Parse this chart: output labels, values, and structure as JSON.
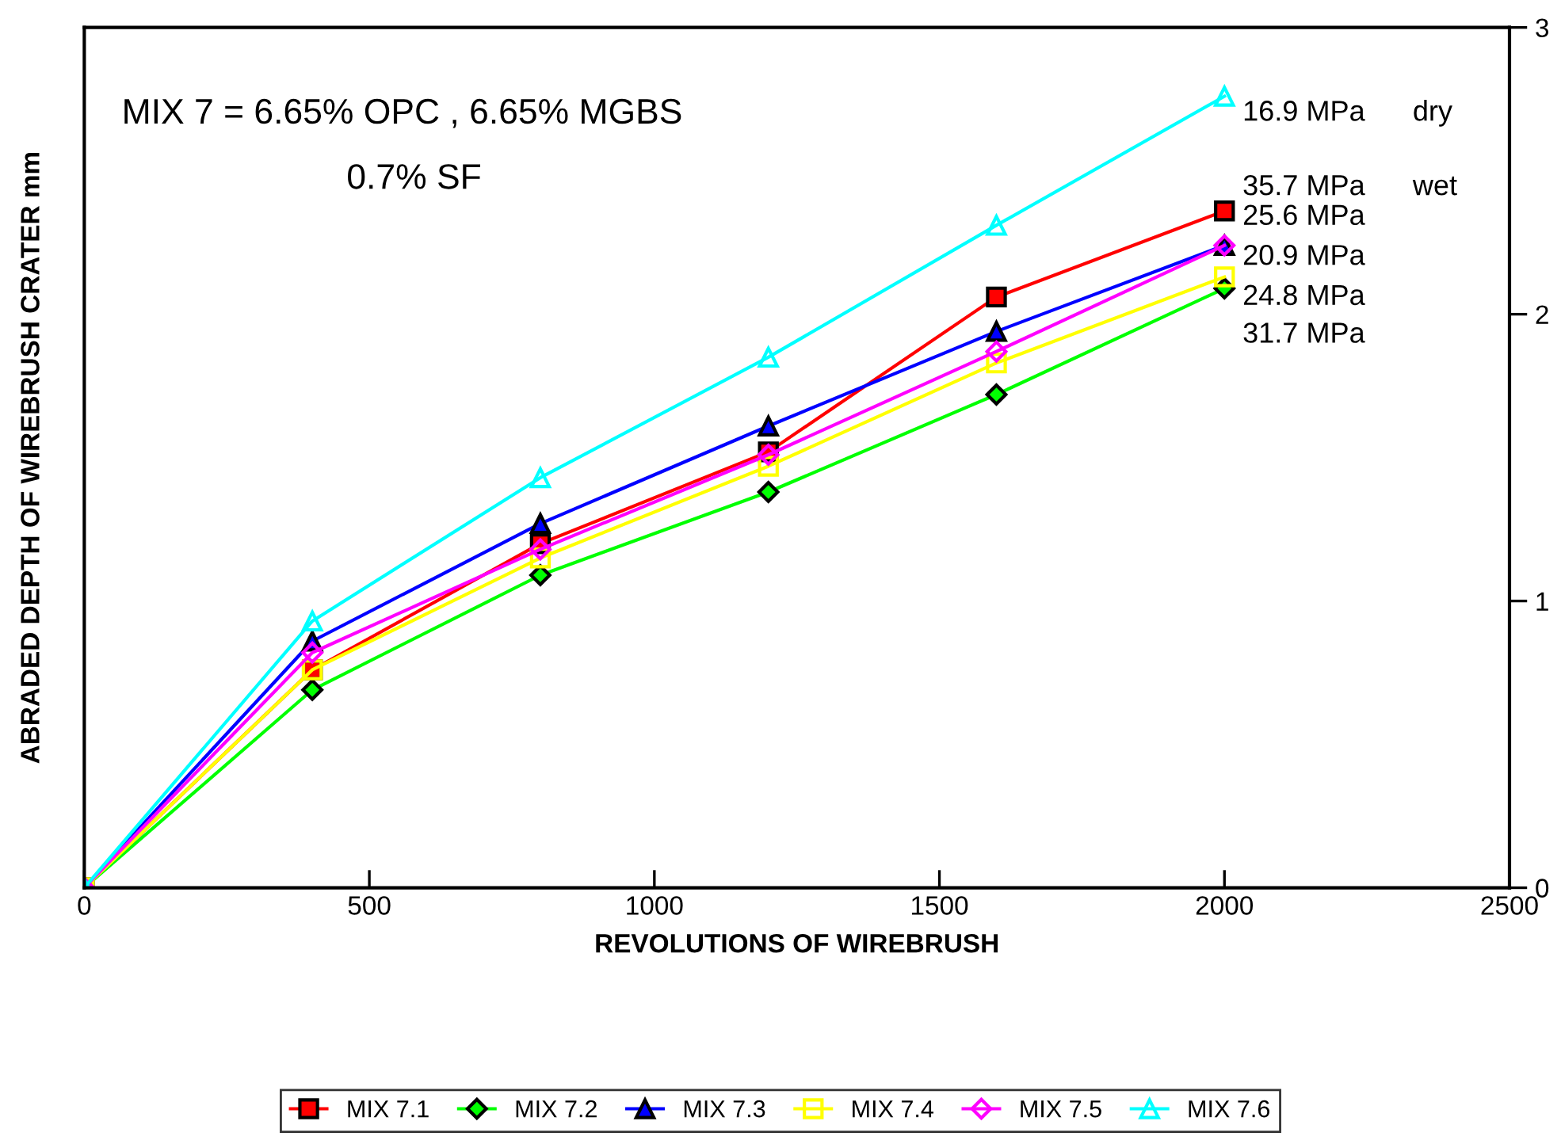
{
  "chart_data": {
    "type": "line",
    "xlabel": "REVOLUTIONS OF WIREBRUSH",
    "ylabel": "ABRADED DEPTH OF WIREBRUSH CRATER mm",
    "x": [
      0,
      400,
      800,
      1200,
      1600,
      2000
    ],
    "series": [
      {
        "name": "MIX 7.1",
        "color": "#ff0000",
        "marker": "square",
        "values": [
          0,
          0.76,
          1.2,
          1.52,
          2.06,
          2.36
        ]
      },
      {
        "name": "MIX 7.2",
        "color": "#00ff00",
        "marker": "diamond",
        "values": [
          0,
          0.69,
          1.09,
          1.38,
          1.72,
          2.09
        ]
      },
      {
        "name": "MIX 7.3",
        "color": "#0000ff",
        "marker": "triangle",
        "values": [
          0,
          0.86,
          1.27,
          1.61,
          1.94,
          2.24
        ]
      },
      {
        "name": "MIX 7.4",
        "color": "#ffff00",
        "marker": "square",
        "values": [
          0,
          0.76,
          1.15,
          1.47,
          1.83,
          2.13
        ]
      },
      {
        "name": "MIX 7.5",
        "color": "#ff00ff",
        "marker": "diamond",
        "values": [
          0,
          0.82,
          1.18,
          1.51,
          1.87,
          2.24
        ]
      },
      {
        "name": "MIX 7.6",
        "color": "#00ffff",
        "marker": "triangle",
        "values": [
          0,
          0.93,
          1.43,
          1.85,
          2.31,
          2.76
        ]
      }
    ],
    "xlim": [
      0,
      2500
    ],
    "xticks": [
      0,
      500,
      1000,
      1500,
      2000,
      2500
    ],
    "ylim": [
      0,
      3
    ],
    "yticks": [
      0,
      1,
      2,
      3
    ],
    "annotations": [
      "MIX 7 = 6.65% OPC , 6.65% MGBS",
      "0.7% SF",
      "16.9 MPa",
      "dry",
      "35.7 MPa",
      "wet",
      "25.6 MPa",
      "20.9 MPa",
      "24.8 MPa",
      "31.7 MPa"
    ],
    "legend": "bottom",
    "grid": false
  }
}
